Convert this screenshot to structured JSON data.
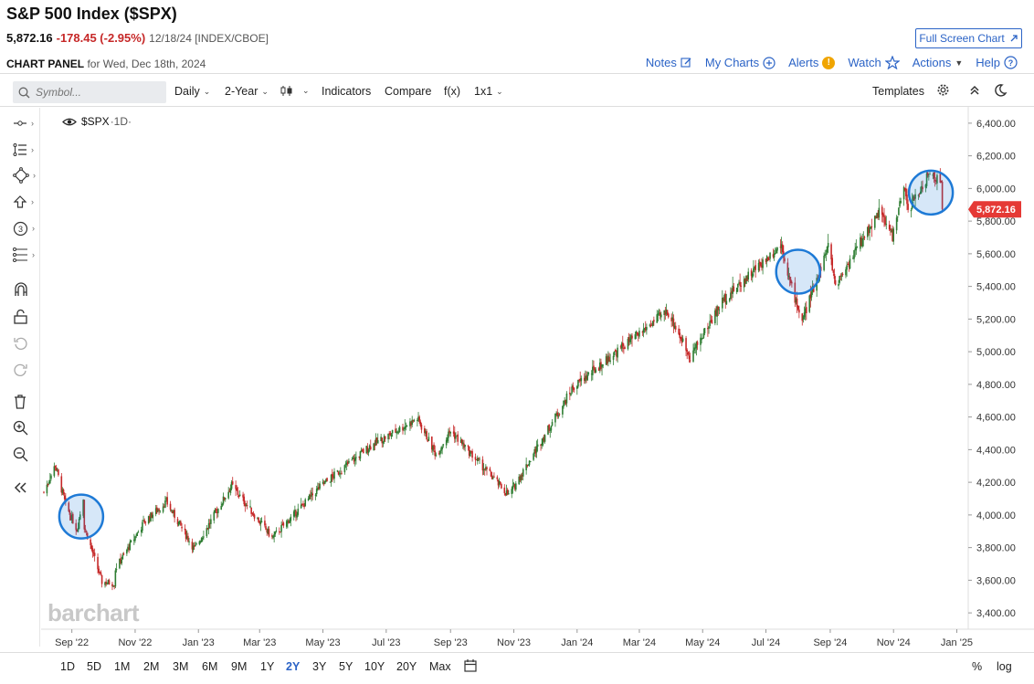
{
  "header": {
    "title": "S&P 500 Index ($SPX)",
    "last": "5,872.16",
    "change": "-178.45 (-2.95%)",
    "meta": "12/18/24 [INDEX/CBOE]",
    "fullscreen_label": "Full Screen Chart"
  },
  "panel": {
    "label_bold": "CHART PANEL",
    "label_rest": "for Wed, Dec 18th, 2024"
  },
  "top_links": {
    "notes": "Notes",
    "mycharts": "My Charts",
    "alerts": "Alerts",
    "alert_mark": "!",
    "watch": "Watch",
    "actions": "Actions",
    "help": "Help"
  },
  "toolbar": {
    "symbol_placeholder": "Symbol...",
    "interval": "Daily",
    "period": "2-Year",
    "indicators": "Indicators",
    "compare": "Compare",
    "fx": "f(x)",
    "layout": "1x1",
    "templates": "Templates"
  },
  "legend": {
    "symbol": "$SPX",
    "interval": "·1D·"
  },
  "watermark": "barchart",
  "timeframes": [
    "1D",
    "5D",
    "1M",
    "2M",
    "3M",
    "6M",
    "9M",
    "1Y",
    "2Y",
    "3Y",
    "5Y",
    "10Y",
    "20Y",
    "Max"
  ],
  "active_timeframe": "2Y",
  "bottom_right": {
    "percent": "%",
    "log": "log"
  },
  "colors": {
    "up": "#2e7d32",
    "down": "#c62828",
    "accent": "#2b63c6",
    "circle": "#1e7ad6",
    "price_tag": "#e53935"
  },
  "chart_data": {
    "type": "candlestick",
    "title": "S&P 500 Index ($SPX)",
    "interval": "Daily",
    "ylim": [
      3300,
      6500
    ],
    "yticks": [
      3400,
      3600,
      3800,
      4000,
      4200,
      4400,
      4600,
      4800,
      5000,
      5200,
      5400,
      5600,
      5800,
      6000,
      6200,
      6400
    ],
    "ytick_labels": [
      "3,400.00",
      "3,600.00",
      "3,800.00",
      "4,000.00",
      "4,200.00",
      "4,400.00",
      "4,600.00",
      "4,800.00",
      "5,000.00",
      "5,200.00",
      "5,400.00",
      "5,600.00",
      "5,800.00",
      "6,000.00",
      "6,200.00",
      "6,400.00"
    ],
    "xlim": [
      "2022-08-05",
      "2025-01-12"
    ],
    "xticks": [
      {
        "date": "2022-09-01",
        "label": "Sep '22"
      },
      {
        "date": "2022-11-01",
        "label": "Nov '22"
      },
      {
        "date": "2023-01-01",
        "label": "Jan '23"
      },
      {
        "date": "2023-03-01",
        "label": "Mar '23"
      },
      {
        "date": "2023-05-01",
        "label": "May '23"
      },
      {
        "date": "2023-07-01",
        "label": "Jul '23"
      },
      {
        "date": "2023-09-01",
        "label": "Sep '23"
      },
      {
        "date": "2023-11-01",
        "label": "Nov '23"
      },
      {
        "date": "2024-01-01",
        "label": "Jan '24"
      },
      {
        "date": "2024-03-01",
        "label": "Mar '24"
      },
      {
        "date": "2024-05-01",
        "label": "May '24"
      },
      {
        "date": "2024-07-01",
        "label": "Jul '24"
      },
      {
        "date": "2024-09-01",
        "label": "Sep '24"
      },
      {
        "date": "2024-11-01",
        "label": "Nov '24"
      },
      {
        "date": "2025-01-01",
        "label": "Jan '25"
      }
    ],
    "close_path_approx": [
      {
        "date": "2022-08-05",
        "close": 4140
      },
      {
        "date": "2022-08-16",
        "close": 4305
      },
      {
        "date": "2022-08-26",
        "close": 4060
      },
      {
        "date": "2022-09-06",
        "close": 3910
      },
      {
        "date": "2022-09-12",
        "close": 4110
      },
      {
        "date": "2022-09-13",
        "close": 3930
      },
      {
        "date": "2022-09-30",
        "close": 3590
      },
      {
        "date": "2022-10-12",
        "close": 3580
      },
      {
        "date": "2022-10-13",
        "close": 3670
      },
      {
        "date": "2022-11-10",
        "close": 3960
      },
      {
        "date": "2022-12-01",
        "close": 4080
      },
      {
        "date": "2022-12-28",
        "close": 3790
      },
      {
        "date": "2023-02-02",
        "close": 4180
      },
      {
        "date": "2023-03-13",
        "close": 3860
      },
      {
        "date": "2023-04-28",
        "close": 4170
      },
      {
        "date": "2023-06-15",
        "close": 4420
      },
      {
        "date": "2023-07-31",
        "close": 4590
      },
      {
        "date": "2023-08-18",
        "close": 4370
      },
      {
        "date": "2023-09-01",
        "close": 4515
      },
      {
        "date": "2023-10-27",
        "close": 4120
      },
      {
        "date": "2023-12-28",
        "close": 4780
      },
      {
        "date": "2024-02-12",
        "close": 5020
      },
      {
        "date": "2024-03-28",
        "close": 5250
      },
      {
        "date": "2024-04-19",
        "close": 4970
      },
      {
        "date": "2024-05-21",
        "close": 5320
      },
      {
        "date": "2024-07-16",
        "close": 5660
      },
      {
        "date": "2024-07-24",
        "close": 5430
      },
      {
        "date": "2024-08-05",
        "close": 5190
      },
      {
        "date": "2024-08-30",
        "close": 5650
      },
      {
        "date": "2024-09-06",
        "close": 5410
      },
      {
        "date": "2024-10-18",
        "close": 5860
      },
      {
        "date": "2024-10-31",
        "close": 5710
      },
      {
        "date": "2024-11-11",
        "close": 6000
      },
      {
        "date": "2024-11-15",
        "close": 5870
      },
      {
        "date": "2024-12-06",
        "close": 6090
      },
      {
        "date": "2024-12-17",
        "close": 6050
      },
      {
        "date": "2024-12-18",
        "close": 5872.16
      }
    ],
    "last_price": 5872.16,
    "last_price_label": "5,872.16",
    "highlight_circles": [
      {
        "date": "2022-09-10",
        "price": 3990
      },
      {
        "date": "2024-08-01",
        "price": 5490
      },
      {
        "date": "2024-12-07",
        "price": 5975
      }
    ]
  }
}
